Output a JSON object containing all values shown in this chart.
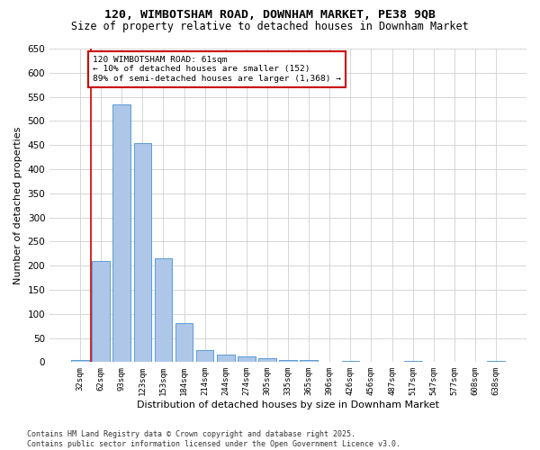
{
  "title1": "120, WIMBOTSHAM ROAD, DOWNHAM MARKET, PE38 9QB",
  "title2": "Size of property relative to detached houses in Downham Market",
  "xlabel": "Distribution of detached houses by size in Downham Market",
  "ylabel": "Number of detached properties",
  "categories": [
    "32sqm",
    "62sqm",
    "93sqm",
    "123sqm",
    "153sqm",
    "184sqm",
    "214sqm",
    "244sqm",
    "274sqm",
    "305sqm",
    "335sqm",
    "365sqm",
    "396sqm",
    "426sqm",
    "456sqm",
    "487sqm",
    "517sqm",
    "547sqm",
    "577sqm",
    "608sqm",
    "638sqm"
  ],
  "values": [
    5,
    210,
    535,
    455,
    215,
    80,
    25,
    15,
    12,
    8,
    5,
    5,
    0,
    3,
    0,
    0,
    3,
    0,
    0,
    0,
    3
  ],
  "bar_color": "#aec6e8",
  "bar_edge_color": "#5b9bd5",
  "annotation_line_color": "#cc0000",
  "ylim": [
    0,
    650
  ],
  "yticks": [
    0,
    50,
    100,
    150,
    200,
    250,
    300,
    350,
    400,
    450,
    500,
    550,
    600,
    650
  ],
  "annotation_text_line1": "120 WIMBOTSHAM ROAD: 61sqm",
  "annotation_text_line2": "← 10% of detached houses are smaller (152)",
  "annotation_text_line3": "89% of semi-detached houses are larger (1,368) →",
  "annotation_box_color": "#ffffff",
  "annotation_box_edge_color": "#cc0000",
  "footnote1": "Contains HM Land Registry data © Crown copyright and database right 2025.",
  "footnote2": "Contains public sector information licensed under the Open Government Licence v3.0.",
  "background_color": "#ffffff",
  "grid_color": "#d0d0d0"
}
